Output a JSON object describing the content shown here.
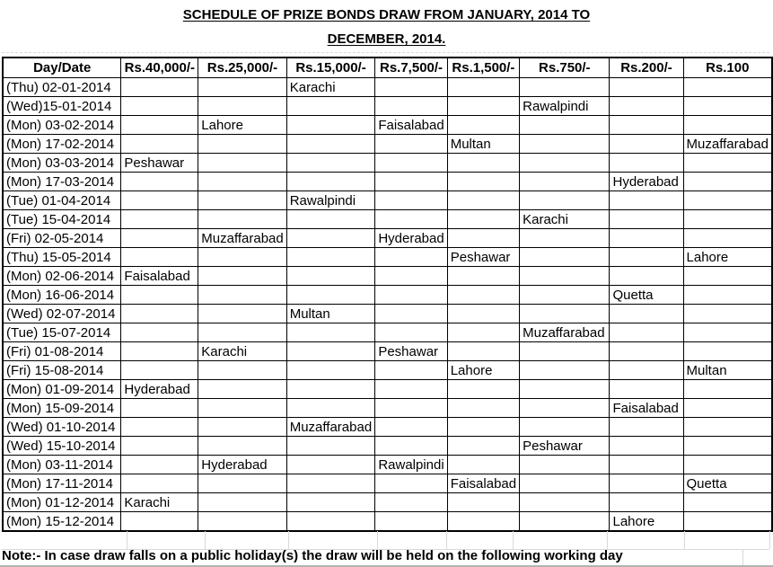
{
  "title": {
    "line1": "SCHEDULE OF PRIZE BONDS DRAW FROM JANUARY, 2014 TO",
    "line2": "DECEMBER, 2014."
  },
  "table": {
    "columns": [
      "Day/Date",
      "Rs.40,000/-",
      "Rs.25,000/-",
      "Rs.15,000/-",
      "Rs.7,500/-",
      "Rs.1,500/-",
      "Rs.750/-",
      "Rs.200/-",
      "Rs.100"
    ],
    "rows": [
      {
        "day": "(Thu) 02-01-2014",
        "cells": [
          "",
          "",
          "Karachi",
          "",
          "",
          "",
          "",
          ""
        ]
      },
      {
        "day": "(Wed)15-01-2014",
        "cells": [
          "",
          "",
          "",
          "",
          "",
          "Rawalpindi",
          "",
          ""
        ]
      },
      {
        "day": "(Mon) 03-02-2014",
        "cells": [
          "",
          "Lahore",
          "",
          "Faisalabad",
          "",
          "",
          "",
          ""
        ]
      },
      {
        "day": "(Mon) 17-02-2014",
        "cells": [
          "",
          "",
          "",
          "",
          "Multan",
          "",
          "",
          "Muzaffarabad"
        ]
      },
      {
        "day": "(Mon) 03-03-2014",
        "cells": [
          "Peshawar",
          "",
          "",
          "",
          "",
          "",
          "",
          ""
        ]
      },
      {
        "day": "(Mon) 17-03-2014",
        "cells": [
          "",
          "",
          "",
          "",
          "",
          "",
          "Hyderabad",
          ""
        ]
      },
      {
        "day": "(Tue) 01-04-2014",
        "cells": [
          "",
          "",
          "Rawalpindi",
          "",
          "",
          "",
          "",
          ""
        ]
      },
      {
        "day": "(Tue) 15-04-2014",
        "cells": [
          "",
          "",
          "",
          "",
          "",
          "Karachi",
          "",
          ""
        ]
      },
      {
        "day": "(Fri) 02-05-2014",
        "cells": [
          "",
          "Muzaffarabad",
          "",
          "Hyderabad",
          "",
          "",
          "",
          ""
        ]
      },
      {
        "day": "(Thu) 15-05-2014",
        "cells": [
          "",
          "",
          "",
          "",
          "Peshawar",
          "",
          "",
          "Lahore"
        ]
      },
      {
        "day": "(Mon) 02-06-2014",
        "cells": [
          "Faisalabad",
          "",
          "",
          "",
          "",
          "",
          "",
          ""
        ]
      },
      {
        "day": "(Mon) 16-06-2014",
        "cells": [
          "",
          "",
          "",
          "",
          "",
          "",
          "Quetta",
          ""
        ]
      },
      {
        "day": "(Wed) 02-07-2014",
        "cells": [
          "",
          "",
          "Multan",
          "",
          "",
          "",
          "",
          ""
        ]
      },
      {
        "day": "(Tue) 15-07-2014",
        "cells": [
          "",
          "",
          "",
          "",
          "",
          "Muzaffarabad",
          "",
          ""
        ]
      },
      {
        "day": "(Fri) 01-08-2014",
        "cells": [
          "",
          "Karachi",
          "",
          "Peshawar",
          "",
          "",
          "",
          ""
        ]
      },
      {
        "day": "(Fri) 15-08-2014",
        "cells": [
          "",
          "",
          "",
          "",
          "Lahore",
          "",
          "",
          "Multan"
        ]
      },
      {
        "day": "(Mon) 01-09-2014",
        "cells": [
          "Hyderabad",
          "",
          "",
          "",
          "",
          "",
          "",
          ""
        ]
      },
      {
        "day": "(Mon) 15-09-2014",
        "cells": [
          "",
          "",
          "",
          "",
          "",
          "",
          "Faisalabad",
          ""
        ]
      },
      {
        "day": "(Wed) 01-10-2014",
        "cells": [
          "",
          "",
          "Muzaffarabad",
          "",
          "",
          "",
          "",
          ""
        ]
      },
      {
        "day": "(Wed) 15-10-2014",
        "cells": [
          "",
          "",
          "",
          "",
          "",
          "Peshawar",
          "",
          ""
        ]
      },
      {
        "day": "(Mon) 03-11-2014",
        "cells": [
          "",
          "Hyderabad",
          "",
          "Rawalpindi",
          "",
          "",
          "",
          ""
        ]
      },
      {
        "day": "(Mon) 17-11-2014",
        "cells": [
          "",
          "",
          "",
          "",
          "Faisalabad",
          "",
          "",
          "Quetta"
        ]
      },
      {
        "day": "(Mon) 01-12-2014",
        "cells": [
          "Karachi",
          "",
          "",
          "",
          "",
          "",
          "",
          ""
        ]
      },
      {
        "day": "(Mon) 15-12-2014",
        "cells": [
          "",
          "",
          "",
          "",
          "",
          "",
          "Lahore",
          ""
        ]
      }
    ]
  },
  "note": "Note:- In case draw falls on a public holiday(s) the draw will be held on the following working day",
  "colors": {
    "table_border": "#000000",
    "ghost_grid": "#d9d9d9",
    "bottom_edge": "#b3b3b3"
  }
}
